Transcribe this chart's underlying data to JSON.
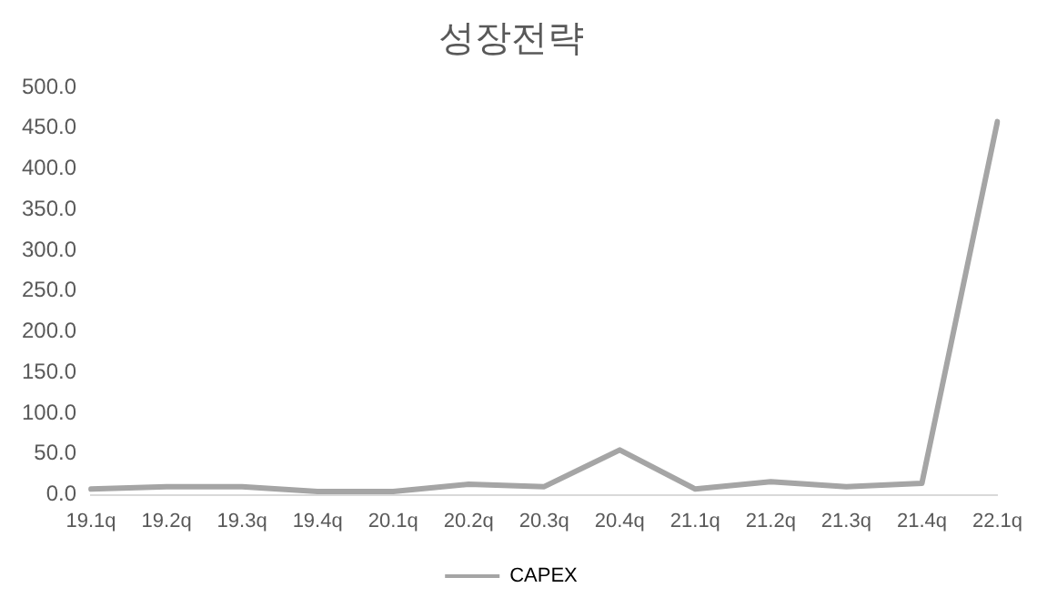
{
  "chart_data": {
    "type": "line",
    "title": "성장전략",
    "categories": [
      "19.1q",
      "19.2q",
      "19.3q",
      "19.4q",
      "20.1q",
      "20.2q",
      "20.3q",
      "20.4q",
      "21.1q",
      "21.2q",
      "21.3q",
      "21.4q",
      "22.1q"
    ],
    "series": [
      {
        "name": "CAPEX",
        "color": "#a5a5a5",
        "values": [
          7,
          10,
          10,
          4,
          4,
          13,
          10,
          55,
          7,
          16,
          10,
          14,
          458
        ]
      }
    ],
    "ylim": [
      0,
      500
    ],
    "yticks": [
      {
        "value": 0,
        "label": "0.0"
      },
      {
        "value": 50,
        "label": "50.0"
      },
      {
        "value": 100,
        "label": "100.0"
      },
      {
        "value": 150,
        "label": "150.0"
      },
      {
        "value": 200,
        "label": "200.0"
      },
      {
        "value": 250,
        "label": "250.0"
      },
      {
        "value": 300,
        "label": "300.0"
      },
      {
        "value": 350,
        "label": "350.0"
      },
      {
        "value": 400,
        "label": "400.0"
      },
      {
        "value": 450,
        "label": "450.0"
      },
      {
        "value": 500,
        "label": "500.0"
      }
    ],
    "grid": false,
    "legend": "bottom",
    "marker": "none"
  }
}
